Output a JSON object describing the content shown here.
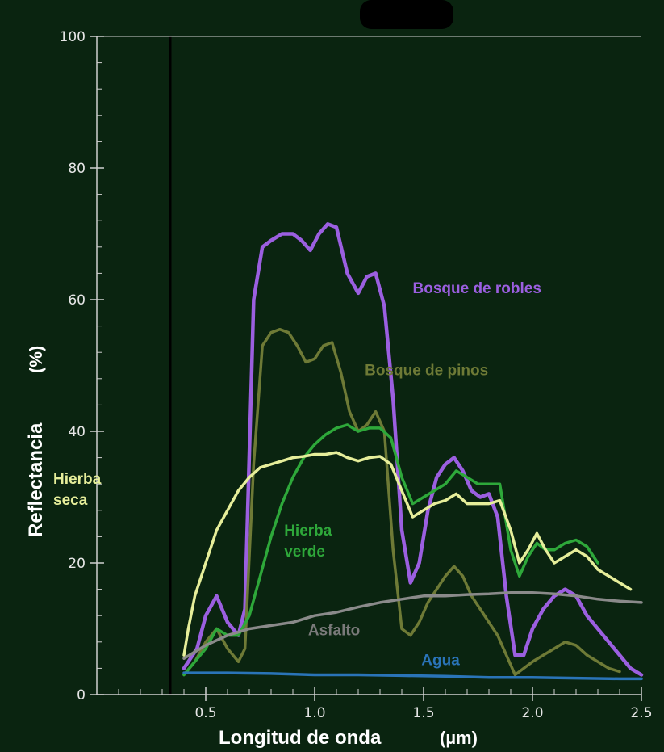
{
  "chart_data": {
    "type": "line",
    "xlabel": "Longitud de onda",
    "xlabel_unit": "(µm)",
    "ylabel": "Reflectancia",
    "ylabel_unit": "(%)",
    "xlim": [
      0,
      2.5
    ],
    "ylim": [
      0,
      100
    ],
    "x_ticks": [
      0.5,
      1.0,
      1.5,
      2.0,
      2.5
    ],
    "x_tick_labels": [
      "0.5",
      "1.0",
      "1.5",
      "2.0",
      "2.5"
    ],
    "y_ticks": [
      0,
      20,
      40,
      60,
      80,
      100
    ],
    "y_tick_labels": [
      "0",
      "20",
      "40",
      "60",
      "80",
      "100"
    ],
    "grid": false,
    "colors": {
      "background": "#1c3a44",
      "plot_background": "#0a2410",
      "axis": "#d0d0d0"
    },
    "series": [
      {
        "name": "Bosque de robles",
        "color": "#9b5fe0",
        "points": [
          [
            0.4,
            4
          ],
          [
            0.46,
            7
          ],
          [
            0.5,
            12
          ],
          [
            0.55,
            15
          ],
          [
            0.6,
            11
          ],
          [
            0.65,
            9
          ],
          [
            0.68,
            13
          ],
          [
            0.72,
            60
          ],
          [
            0.76,
            68
          ],
          [
            0.8,
            69
          ],
          [
            0.85,
            70
          ],
          [
            0.9,
            70
          ],
          [
            0.94,
            69
          ],
          [
            0.98,
            67.5
          ],
          [
            1.02,
            70
          ],
          [
            1.06,
            71.5
          ],
          [
            1.1,
            71
          ],
          [
            1.15,
            64
          ],
          [
            1.2,
            61
          ],
          [
            1.24,
            63.5
          ],
          [
            1.28,
            64
          ],
          [
            1.32,
            59
          ],
          [
            1.36,
            45
          ],
          [
            1.4,
            25
          ],
          [
            1.44,
            17
          ],
          [
            1.48,
            20
          ],
          [
            1.52,
            28
          ],
          [
            1.56,
            33
          ],
          [
            1.6,
            35
          ],
          [
            1.64,
            36
          ],
          [
            1.68,
            34
          ],
          [
            1.72,
            31
          ],
          [
            1.76,
            30
          ],
          [
            1.8,
            30.5
          ],
          [
            1.84,
            27
          ],
          [
            1.88,
            15
          ],
          [
            1.92,
            6
          ],
          [
            1.96,
            6
          ],
          [
            2.0,
            10
          ],
          [
            2.05,
            13
          ],
          [
            2.1,
            15
          ],
          [
            2.15,
            16
          ],
          [
            2.2,
            15
          ],
          [
            2.25,
            12
          ],
          [
            2.3,
            10
          ],
          [
            2.35,
            8
          ],
          [
            2.4,
            6
          ],
          [
            2.45,
            4
          ],
          [
            2.5,
            3
          ]
        ]
      },
      {
        "name": "Bosque de pinos",
        "color": "#6e7a36",
        "points": [
          [
            0.4,
            3
          ],
          [
            0.45,
            5
          ],
          [
            0.5,
            8
          ],
          [
            0.55,
            10
          ],
          [
            0.6,
            7
          ],
          [
            0.65,
            5
          ],
          [
            0.68,
            7
          ],
          [
            0.72,
            35
          ],
          [
            0.76,
            53
          ],
          [
            0.8,
            55
          ],
          [
            0.84,
            55.5
          ],
          [
            0.88,
            55
          ],
          [
            0.92,
            53
          ],
          [
            0.96,
            50.5
          ],
          [
            1.0,
            51
          ],
          [
            1.04,
            53
          ],
          [
            1.08,
            53.5
          ],
          [
            1.12,
            49
          ],
          [
            1.16,
            43
          ],
          [
            1.2,
            40
          ],
          [
            1.24,
            41
          ],
          [
            1.28,
            43
          ],
          [
            1.32,
            40
          ],
          [
            1.36,
            22
          ],
          [
            1.4,
            10
          ],
          [
            1.44,
            9
          ],
          [
            1.48,
            11
          ],
          [
            1.52,
            14
          ],
          [
            1.56,
            16
          ],
          [
            1.6,
            18
          ],
          [
            1.64,
            19.5
          ],
          [
            1.68,
            18
          ],
          [
            1.72,
            15
          ],
          [
            1.76,
            13
          ],
          [
            1.8,
            11
          ],
          [
            1.84,
            9
          ],
          [
            1.88,
            6
          ],
          [
            1.92,
            3
          ],
          [
            1.96,
            4
          ],
          [
            2.0,
            5
          ],
          [
            2.05,
            6
          ],
          [
            2.1,
            7
          ],
          [
            2.15,
            8
          ],
          [
            2.2,
            7.5
          ],
          [
            2.25,
            6
          ],
          [
            2.3,
            5
          ],
          [
            2.35,
            4
          ],
          [
            2.4,
            3.5
          ]
        ]
      },
      {
        "name": "Hierba verde",
        "color": "#2ea83a",
        "points": [
          [
            0.4,
            3
          ],
          [
            0.45,
            5
          ],
          [
            0.5,
            7
          ],
          [
            0.55,
            10
          ],
          [
            0.6,
            9
          ],
          [
            0.65,
            9
          ],
          [
            0.7,
            12
          ],
          [
            0.75,
            18
          ],
          [
            0.8,
            24
          ],
          [
            0.85,
            29
          ],
          [
            0.9,
            33
          ],
          [
            0.95,
            36
          ],
          [
            1.0,
            38
          ],
          [
            1.05,
            39.5
          ],
          [
            1.1,
            40.5
          ],
          [
            1.15,
            41
          ],
          [
            1.2,
            40
          ],
          [
            1.25,
            40.5
          ],
          [
            1.3,
            40.5
          ],
          [
            1.35,
            39
          ],
          [
            1.4,
            33
          ],
          [
            1.45,
            29
          ],
          [
            1.5,
            30
          ],
          [
            1.55,
            31
          ],
          [
            1.6,
            32
          ],
          [
            1.65,
            34
          ],
          [
            1.7,
            33
          ],
          [
            1.75,
            32
          ],
          [
            1.8,
            32
          ],
          [
            1.85,
            32
          ],
          [
            1.9,
            22
          ],
          [
            1.94,
            18
          ],
          [
            1.98,
            21
          ],
          [
            2.02,
            23
          ],
          [
            2.06,
            22
          ],
          [
            2.1,
            22
          ],
          [
            2.15,
            23
          ],
          [
            2.2,
            23.5
          ],
          [
            2.25,
            22.5
          ],
          [
            2.3,
            20
          ]
        ]
      },
      {
        "name": "Hierba seca",
        "color": "#e6ee9a",
        "points": [
          [
            0.4,
            6
          ],
          [
            0.42,
            10
          ],
          [
            0.45,
            15
          ],
          [
            0.5,
            20
          ],
          [
            0.55,
            25
          ],
          [
            0.6,
            28
          ],
          [
            0.65,
            31
          ],
          [
            0.7,
            33
          ],
          [
            0.75,
            34.5
          ],
          [
            0.8,
            35
          ],
          [
            0.85,
            35.5
          ],
          [
            0.9,
            36
          ],
          [
            0.95,
            36.2
          ],
          [
            1.0,
            36.5
          ],
          [
            1.05,
            36.5
          ],
          [
            1.1,
            36.8
          ],
          [
            1.15,
            36
          ],
          [
            1.2,
            35.5
          ],
          [
            1.25,
            36
          ],
          [
            1.3,
            36.2
          ],
          [
            1.35,
            35
          ],
          [
            1.4,
            31
          ],
          [
            1.45,
            27
          ],
          [
            1.5,
            28
          ],
          [
            1.55,
            29
          ],
          [
            1.6,
            29.5
          ],
          [
            1.65,
            30.5
          ],
          [
            1.7,
            29
          ],
          [
            1.75,
            29
          ],
          [
            1.8,
            29
          ],
          [
            1.85,
            29.5
          ],
          [
            1.9,
            25
          ],
          [
            1.94,
            20
          ],
          [
            1.98,
            22
          ],
          [
            2.02,
            24.5
          ],
          [
            2.06,
            22
          ],
          [
            2.1,
            20
          ],
          [
            2.15,
            21
          ],
          [
            2.2,
            22
          ],
          [
            2.25,
            21
          ],
          [
            2.3,
            19
          ],
          [
            2.35,
            18
          ],
          [
            2.4,
            17
          ],
          [
            2.45,
            16
          ]
        ]
      },
      {
        "name": "Asfalto",
        "color": "#8a8a8a",
        "points": [
          [
            0.4,
            5.5
          ],
          [
            0.5,
            7.5
          ],
          [
            0.6,
            9
          ],
          [
            0.7,
            10
          ],
          [
            0.8,
            10.5
          ],
          [
            0.9,
            11
          ],
          [
            1.0,
            12
          ],
          [
            1.1,
            12.5
          ],
          [
            1.2,
            13.3
          ],
          [
            1.3,
            14
          ],
          [
            1.4,
            14.5
          ],
          [
            1.5,
            15
          ],
          [
            1.6,
            15
          ],
          [
            1.7,
            15.2
          ],
          [
            1.8,
            15.3
          ],
          [
            1.9,
            15.5
          ],
          [
            2.0,
            15.5
          ],
          [
            2.1,
            15.3
          ],
          [
            2.2,
            15
          ],
          [
            2.3,
            14.5
          ],
          [
            2.4,
            14.2
          ],
          [
            2.5,
            14
          ]
        ]
      },
      {
        "name": "Agua",
        "color": "#2a74b8",
        "points": [
          [
            0.4,
            3.3
          ],
          [
            0.6,
            3.3
          ],
          [
            0.8,
            3.2
          ],
          [
            1.0,
            3.0
          ],
          [
            1.2,
            3.0
          ],
          [
            1.4,
            2.9
          ],
          [
            1.6,
            2.8
          ],
          [
            1.8,
            2.6
          ],
          [
            2.0,
            2.6
          ],
          [
            2.2,
            2.5
          ],
          [
            2.4,
            2.4
          ],
          [
            2.5,
            2.4
          ]
        ]
      }
    ],
    "annotations": [
      {
        "series": "Bosque de robles",
        "lines": [
          "Bosque de robles"
        ],
        "color": "#9b5fe0",
        "x": 1.45,
        "y": 61
      },
      {
        "series": "Bosque de pinos",
        "lines": [
          "Bosque de pinos"
        ],
        "color": "#6e7a36",
        "x": 1.23,
        "y": 48.5
      },
      {
        "series": "Hierba verde",
        "lines": [
          "Hierba",
          "verde"
        ],
        "color": "#2ea83a",
        "x": 0.86,
        "y": 24.2
      },
      {
        "series": "Hierba seca",
        "lines": [
          "Hierba",
          "seca"
        ],
        "color": "#e6ee9a",
        "x": -0.2,
        "y": 32
      },
      {
        "series": "Asfalto",
        "lines": [
          "Asfalto"
        ],
        "color": "#7a7a7a",
        "x": 0.97,
        "y": 9
      },
      {
        "series": "Agua",
        "lines": [
          "Agua"
        ],
        "color": "#2a74b8",
        "x": 1.49,
        "y": 4.5
      }
    ]
  }
}
